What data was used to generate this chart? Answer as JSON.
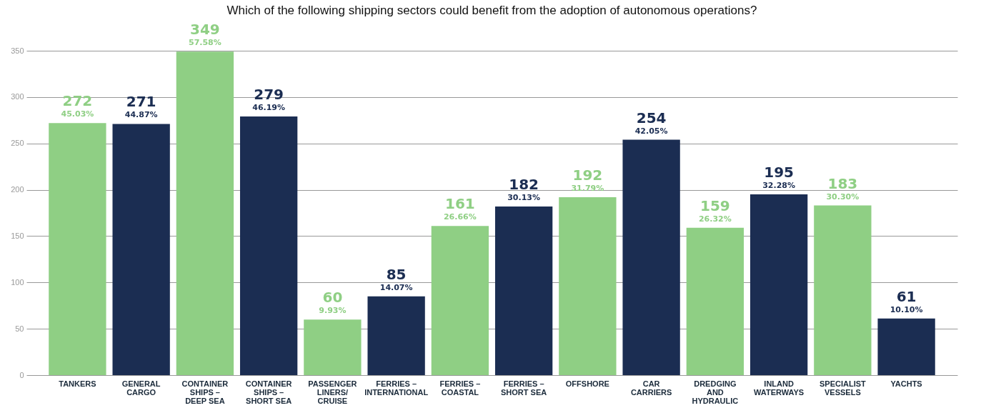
{
  "chart_data": {
    "type": "bar",
    "title": "Which of the following shipping sectors could benefit from the adoption of autonomous operations?",
    "categories": [
      "TANKERS",
      "GENERAL CARGO",
      "CONTAINER SHIPS – DEEP SEA",
      "CONTAINER SHIPS – SHORT SEA",
      "PASSENGER LINERS/ CRUISE",
      "FERRIES – INTERNATIONAL",
      "FERRIES – COASTAL",
      "FERRIES – SHORT SEA",
      "OFFSHORE",
      "CAR CARRIERS",
      "DREDGING AND HYDRAULIC",
      "INLAND WATERWAYS",
      "SPECIALIST VESSELS",
      "YACHTS"
    ],
    "values": [
      272,
      271,
      349,
      279,
      60,
      85,
      161,
      182,
      192,
      254,
      159,
      195,
      183,
      61
    ],
    "colors": [
      "#8fcf84",
      "#1b2d52",
      "#8fcf84",
      "#1b2d52",
      "#8fcf84",
      "#1b2d52",
      "#8fcf84",
      "#1b2d52",
      "#8fcf84",
      "#1b2d52",
      "#8fcf84",
      "#1b2d52",
      "#8fcf84",
      "#1b2d52"
    ],
    "data_labels": true,
    "annotations": [
      {
        "text": "45.03%",
        "x": "TANKERS",
        "y": 272
      },
      {
        "text": "44.87%",
        "x": "GENERAL CARGO",
        "y": 271
      },
      {
        "text": "57.58%",
        "x": "CONTAINER SHIPS – DEEP SEA",
        "y": 349
      },
      {
        "text": "46.19%",
        "x": "CONTAINER SHIPS – SHORT SEA",
        "y": 279
      },
      {
        "text": "9.93%",
        "x": "PASSENGER LINERS/ CRUISE",
        "y": 60
      },
      {
        "text": "14.07%",
        "x": "FERRIES – INTERNATIONAL",
        "y": 85
      },
      {
        "text": "26.66%",
        "x": "FERRIES – COASTAL",
        "y": 161
      },
      {
        "text": "30.13%",
        "x": "FERRIES – SHORT SEA",
        "y": 182
      },
      {
        "text": "31.79%",
        "x": "OFFSHORE",
        "y": 192
      },
      {
        "text": "42.05%",
        "x": "CAR CARRIERS",
        "y": 254
      },
      {
        "text": "26.32%",
        "x": "DREDGING AND HYDRAULIC",
        "y": 159
      },
      {
        "text": "32.28%",
        "x": "INLAND WATERWAYS",
        "y": 195
      },
      {
        "text": "30.30%",
        "x": "SPECIALIST VESSELS",
        "y": 183
      },
      {
        "text": "10.10%",
        "x": "YACHTS",
        "y": 61
      }
    ],
    "ylim": [
      0,
      350
    ],
    "yticks": [
      0,
      50,
      100,
      150,
      200,
      250,
      300,
      350
    ],
    "grid": "y"
  }
}
